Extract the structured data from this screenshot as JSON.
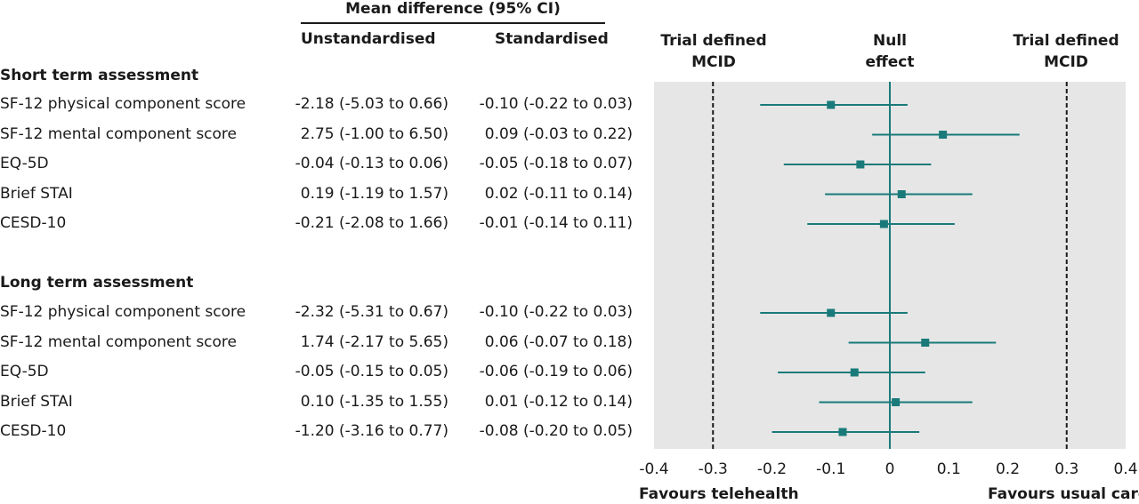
{
  "header": {
    "group_title": "Mean difference (95% CI)",
    "col_unstd": "Unstandardised",
    "col_std": "Standardised"
  },
  "panel": {
    "left_label_line1": "Trial defined",
    "left_label_line2": "MCID",
    "center_label_line1": "Null",
    "center_label_line2": "effect",
    "right_label_line1": "Trial defined",
    "right_label_line2": "MCID",
    "favours_left": "Favours telehealth",
    "favours_right": "Favours usual care"
  },
  "sections": [
    {
      "title": "Short term assessment",
      "rows": [
        {
          "label": "SF-12 physical component score",
          "unstd": "-2.18 (-5.03 to 0.66)",
          "std": "-0.10 (-0.22 to 0.03)"
        },
        {
          "label": "SF-12 mental component score",
          "unstd": "2.75 (-1.00 to 6.50)",
          "std": "0.09 (-0.03 to 0.22)"
        },
        {
          "label": "EQ-5D",
          "unstd": "-0.04 (-0.13 to 0.06)",
          "std": "-0.05 (-0.18 to 0.07)"
        },
        {
          "label": "Brief STAI",
          "unstd": "0.19 (-1.19 to 1.57)",
          "std": "0.02 (-0.11 to 0.14)"
        },
        {
          "label": "CESD-10",
          "unstd": "-0.21 (-2.08 to 1.66)",
          "std": "-0.01 (-0.14 to 0.11)"
        }
      ]
    },
    {
      "title": "Long term assessment",
      "rows": [
        {
          "label": "SF-12 physical component score",
          "unstd": "-2.32 (-5.31 to 0.67)",
          "std": "-0.10 (-0.22 to 0.03)"
        },
        {
          "label": "SF-12 mental component score",
          "unstd": "1.74 (-2.17 to 5.65)",
          "std": "0.06 (-0.07 to 0.18)"
        },
        {
          "label": "EQ-5D",
          "unstd": "-0.05 (-0.15 to 0.05)",
          "std": "-0.06 (-0.19 to 0.06)"
        },
        {
          "label": "Brief STAI",
          "unstd": "0.10 (-1.35 to 1.55)",
          "std": "0.01 (-0.12 to 0.14)"
        },
        {
          "label": "CESD-10",
          "unstd": "-1.20 (-3.16 to 0.77)",
          "std": "-0.08 (-0.20 to 0.05)"
        }
      ]
    }
  ],
  "chart_data": {
    "type": "forest",
    "xlim": [
      -0.4,
      0.4
    ],
    "xticks": [
      "-0.4",
      "-0.3",
      "-0.2",
      "-0.1",
      "0",
      "0.1",
      "0.2",
      "0.3",
      "0.4"
    ],
    "xtick_values": [
      -0.4,
      -0.3,
      -0.2,
      -0.1,
      0,
      0.1,
      0.2,
      0.3,
      0.4
    ],
    "reference_lines": [
      {
        "value": -0.3,
        "style": "dashed"
      },
      {
        "value": 0.0,
        "style": "solid"
      },
      {
        "value": 0.3,
        "style": "dashed"
      }
    ],
    "points": [
      {
        "estimate": -0.1,
        "lower": -0.22,
        "upper": 0.03
      },
      {
        "estimate": 0.09,
        "lower": -0.03,
        "upper": 0.22
      },
      {
        "estimate": -0.05,
        "lower": -0.18,
        "upper": 0.07
      },
      {
        "estimate": 0.02,
        "lower": -0.11,
        "upper": 0.14
      },
      {
        "estimate": -0.01,
        "lower": -0.14,
        "upper": 0.11
      },
      {
        "estimate": -0.1,
        "lower": -0.22,
        "upper": 0.03
      },
      {
        "estimate": 0.06,
        "lower": -0.07,
        "upper": 0.18
      },
      {
        "estimate": -0.06,
        "lower": -0.19,
        "upper": 0.06
      },
      {
        "estimate": 0.01,
        "lower": -0.12,
        "upper": 0.14
      },
      {
        "estimate": -0.08,
        "lower": -0.2,
        "upper": 0.05
      }
    ],
    "colors": {
      "marker": "#1a7a7a",
      "panel_bg": "#e6e6e6",
      "ref": "#1a1a1a",
      "null_line": "#1a7a7a"
    },
    "grid": false
  }
}
